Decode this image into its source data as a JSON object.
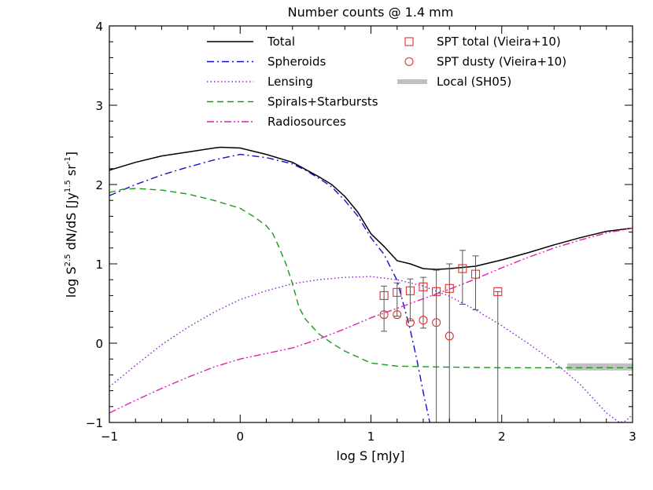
{
  "chart_data": {
    "type": "line",
    "title": "Number counts @ 1.4 mm",
    "xlabel": "log S [mJy]",
    "ylabel_main": "log S",
    "ylabel_sup1": "2.5",
    "ylabel_mid": " dN/dS [Jy",
    "ylabel_sup2": "1.5",
    "ylabel_mid2": " sr",
    "ylabel_sup3": "-1",
    "ylabel_end": "]",
    "xlim": [
      -1,
      3
    ],
    "ylim": [
      -1,
      4
    ],
    "x_ticks": [
      -1,
      0,
      1,
      2,
      3
    ],
    "x_tick_labels": [
      "−1",
      "0",
      "1",
      "2",
      "3"
    ],
    "y_ticks": [
      -1,
      0,
      1,
      2,
      3,
      4
    ],
    "y_tick_labels": [
      "−1",
      "0",
      "1",
      "2",
      "3",
      "4"
    ],
    "grid": false,
    "legend_position": "top",
    "series": [
      {
        "name": "Total",
        "color": "#000000",
        "style": "solid",
        "x": [
          -1,
          -0.8,
          -0.6,
          -0.4,
          -0.2,
          -0.15,
          0,
          0.2,
          0.4,
          0.5,
          0.6,
          0.7,
          0.8,
          0.9,
          1.0,
          1.1,
          1.2,
          1.3,
          1.4,
          1.5,
          1.6,
          1.8,
          2.0,
          2.2,
          2.4,
          2.6,
          2.8,
          3.0
        ],
        "y": [
          2.18,
          2.28,
          2.36,
          2.41,
          2.46,
          2.47,
          2.46,
          2.38,
          2.28,
          2.19,
          2.1,
          2.0,
          1.85,
          1.65,
          1.38,
          1.22,
          1.04,
          1.0,
          0.94,
          0.93,
          0.94,
          0.97,
          1.05,
          1.14,
          1.24,
          1.33,
          1.41,
          1.45
        ]
      },
      {
        "name": "Spheroids",
        "color": "#1010d0",
        "style": "dashdot",
        "x": [
          -1,
          -0.8,
          -0.6,
          -0.4,
          -0.2,
          0,
          0.2,
          0.4,
          0.5,
          0.6,
          0.7,
          0.8,
          0.9,
          1.0,
          1.1,
          1.2,
          1.3,
          1.35,
          1.4,
          1.45
        ],
        "y": [
          1.86,
          2.0,
          2.12,
          2.22,
          2.31,
          2.38,
          2.34,
          2.26,
          2.18,
          2.08,
          1.97,
          1.8,
          1.6,
          1.33,
          1.12,
          0.79,
          0.17,
          -0.2,
          -0.62,
          -1.0
        ]
      },
      {
        "name": "Lensing",
        "color": "#8a1bd8",
        "style": "dotted",
        "x": [
          -1,
          -0.8,
          -0.6,
          -0.4,
          -0.2,
          0,
          0.2,
          0.4,
          0.6,
          0.8,
          1.0,
          1.2,
          1.4,
          1.6,
          1.8,
          2.0,
          2.2,
          2.4,
          2.6,
          2.7,
          2.8,
          2.9,
          2.95,
          3.0
        ],
        "y": [
          -0.55,
          -0.28,
          -0.02,
          0.2,
          0.39,
          0.55,
          0.66,
          0.75,
          0.8,
          0.83,
          0.84,
          0.8,
          0.72,
          0.59,
          0.42,
          0.22,
          0.0,
          -0.24,
          -0.52,
          -0.7,
          -0.88,
          -1.0,
          -0.98,
          -0.9
        ]
      },
      {
        "name": "Spirals+Starbursts",
        "color": "#1a9a1a",
        "style": "dashed",
        "x": [
          -1,
          -0.9,
          -0.8,
          -0.6,
          -0.4,
          -0.2,
          0,
          0.1,
          0.2,
          0.25,
          0.3,
          0.35,
          0.4,
          0.45,
          0.5,
          0.6,
          0.7,
          0.8,
          1.0,
          1.2,
          1.5,
          2.0,
          2.5,
          3.0
        ],
        "y": [
          1.9,
          1.94,
          1.95,
          1.93,
          1.88,
          1.8,
          1.7,
          1.6,
          1.48,
          1.38,
          1.2,
          1.0,
          0.75,
          0.45,
          0.3,
          0.12,
          0.0,
          -0.1,
          -0.25,
          -0.29,
          -0.3,
          -0.31,
          -0.31,
          -0.31
        ]
      },
      {
        "name": "Radiosources",
        "color": "#e020b0",
        "style": "dashdotdot",
        "x": [
          -1,
          -0.8,
          -0.6,
          -0.4,
          -0.2,
          0,
          0.2,
          0.4,
          0.6,
          0.8,
          1.0,
          1.2,
          1.4,
          1.6,
          1.8,
          2.0,
          2.2,
          2.4,
          2.6,
          2.8,
          3.0
        ],
        "y": [
          -0.88,
          -0.72,
          -0.57,
          -0.43,
          -0.3,
          -0.2,
          -0.13,
          -0.06,
          0.05,
          0.18,
          0.32,
          0.44,
          0.56,
          0.68,
          0.81,
          0.95,
          1.08,
          1.2,
          1.3,
          1.39,
          1.45
        ]
      }
    ],
    "markers": [
      {
        "name": "SPT total (Vieira+10)",
        "color": "#e03030",
        "symbol": "square",
        "x": [
          1.1,
          1.2,
          1.3,
          1.4,
          1.5,
          1.6,
          1.7,
          1.8,
          1.97
        ],
        "y": [
          0.6,
          0.64,
          0.66,
          0.71,
          0.65,
          0.69,
          0.94,
          0.87,
          0.65
        ],
        "err_low": [
          0.45,
          0.3,
          0.38,
          0.52,
          1.65,
          1.69,
          0.45,
          0.45,
          1.65
        ],
        "err_high": [
          0.12,
          0.12,
          0.15,
          0.12,
          0.27,
          0.31,
          0.23,
          0.23,
          0.0
        ]
      },
      {
        "name": "SPT dusty (Vieira+10)",
        "color": "#e03030",
        "symbol": "circle",
        "x": [
          1.1,
          1.2,
          1.3,
          1.4,
          1.5,
          1.6
        ],
        "y": [
          0.36,
          0.36,
          0.26,
          0.29,
          0.26,
          0.09
        ],
        "err_low": [
          0.0,
          0.0,
          0.0,
          0.0,
          0.0,
          0.0
        ],
        "err_high": [
          0.0,
          0.0,
          0.0,
          0.0,
          0.0,
          0.0
        ]
      }
    ],
    "band": {
      "name": "Local (SH05)",
      "color": "#c0c0c0",
      "x": [
        2.5,
        3.0
      ],
      "y": -0.3
    },
    "legend_left": [
      "Total",
      "Spheroids",
      "Lensing",
      "Spirals+Starbursts",
      "Radiosources"
    ],
    "legend_right": [
      "SPT total (Vieira+10)",
      "SPT dusty (Vieira+10)",
      "Local (SH05)"
    ]
  }
}
